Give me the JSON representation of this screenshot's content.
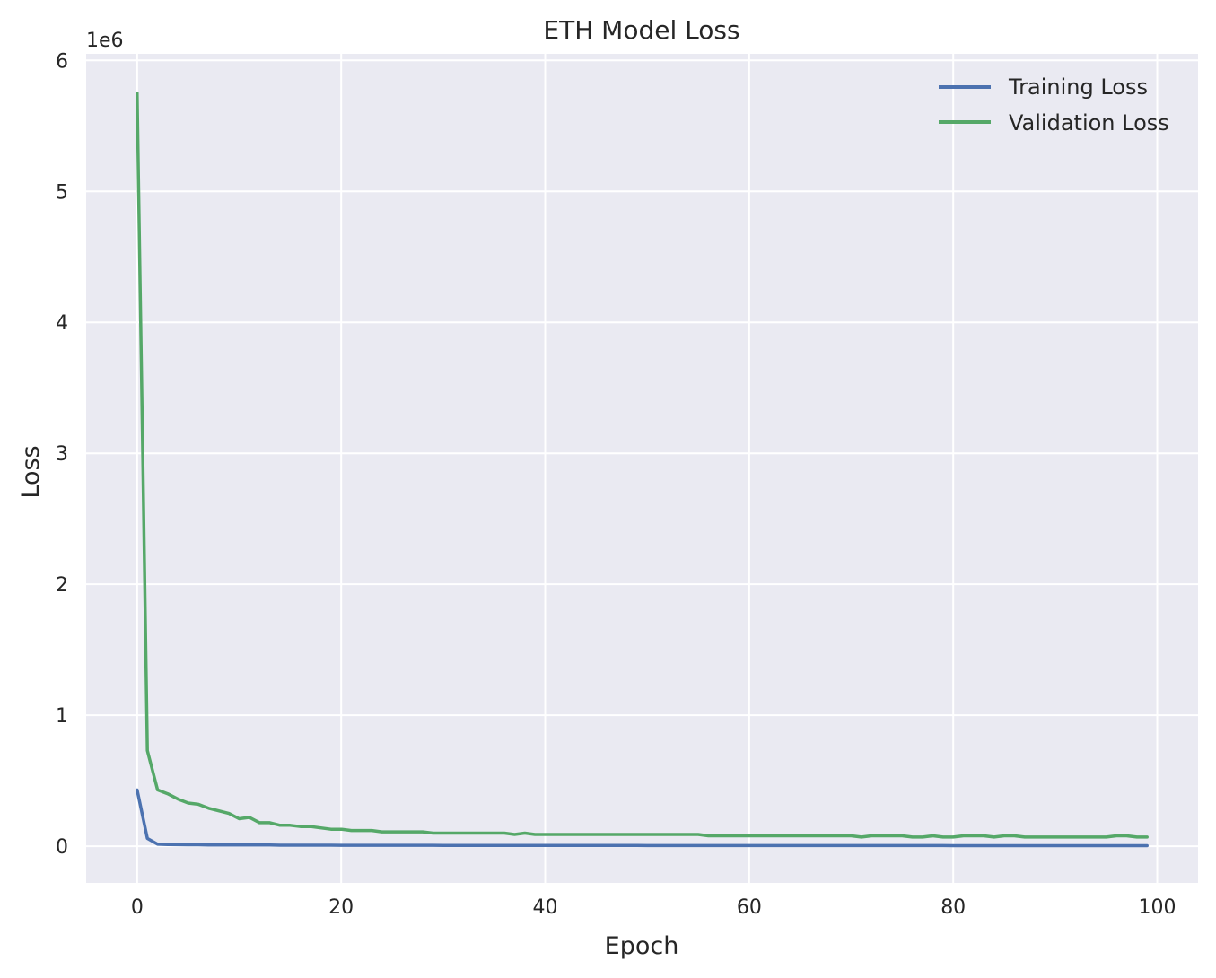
{
  "chart_data": {
    "type": "line",
    "title": "ETH Model Loss",
    "xlabel": "Epoch",
    "ylabel": "Loss",
    "y_scale_label": "1e6",
    "xlim": [
      -5,
      104
    ],
    "ylim": [
      -0.28,
      6.05
    ],
    "x_ticks": [
      0,
      20,
      40,
      60,
      80,
      100
    ],
    "y_ticks": [
      0,
      1,
      2,
      3,
      4,
      5,
      6
    ],
    "grid": true,
    "legend_position": "top-right",
    "background_color": "#eaeaf2",
    "grid_color": "#ffffff",
    "series": [
      {
        "name": "Training Loss",
        "color": "#4c72b0",
        "x_start": 0,
        "values": [
          0.43,
          0.06,
          0.015,
          0.013,
          0.012,
          0.011,
          0.011,
          0.01,
          0.01,
          0.01,
          0.009,
          0.009,
          0.009,
          0.009,
          0.008,
          0.008,
          0.008,
          0.008,
          0.008,
          0.008,
          0.007,
          0.007,
          0.007,
          0.007,
          0.007,
          0.007,
          0.007,
          0.007,
          0.007,
          0.007,
          0.006,
          0.006,
          0.006,
          0.006,
          0.006,
          0.006,
          0.006,
          0.006,
          0.006,
          0.006,
          0.006,
          0.006,
          0.006,
          0.006,
          0.006,
          0.006,
          0.006,
          0.006,
          0.006,
          0.006,
          0.005,
          0.005,
          0.005,
          0.005,
          0.005,
          0.005,
          0.005,
          0.005,
          0.005,
          0.005,
          0.005,
          0.005,
          0.005,
          0.005,
          0.005,
          0.005,
          0.005,
          0.005,
          0.005,
          0.005,
          0.005,
          0.005,
          0.005,
          0.005,
          0.005,
          0.005,
          0.005,
          0.005,
          0.005,
          0.005,
          0.004,
          0.004,
          0.004,
          0.004,
          0.004,
          0.004,
          0.004,
          0.004,
          0.004,
          0.004,
          0.004,
          0.004,
          0.004,
          0.004,
          0.004,
          0.004,
          0.004,
          0.004,
          0.004,
          0.004
        ]
      },
      {
        "name": "Validation Loss",
        "color": "#55a868",
        "x_start": 0,
        "values": [
          5.75,
          0.73,
          0.43,
          0.4,
          0.36,
          0.33,
          0.32,
          0.29,
          0.27,
          0.25,
          0.21,
          0.22,
          0.18,
          0.18,
          0.16,
          0.16,
          0.15,
          0.15,
          0.14,
          0.13,
          0.13,
          0.12,
          0.12,
          0.12,
          0.11,
          0.11,
          0.11,
          0.11,
          0.11,
          0.1,
          0.1,
          0.1,
          0.1,
          0.1,
          0.1,
          0.1,
          0.1,
          0.09,
          0.1,
          0.09,
          0.09,
          0.09,
          0.09,
          0.09,
          0.09,
          0.09,
          0.09,
          0.09,
          0.09,
          0.09,
          0.09,
          0.09,
          0.09,
          0.09,
          0.09,
          0.09,
          0.08,
          0.08,
          0.08,
          0.08,
          0.08,
          0.08,
          0.08,
          0.08,
          0.08,
          0.08,
          0.08,
          0.08,
          0.08,
          0.08,
          0.08,
          0.07,
          0.08,
          0.08,
          0.08,
          0.08,
          0.07,
          0.07,
          0.08,
          0.07,
          0.07,
          0.08,
          0.08,
          0.08,
          0.07,
          0.08,
          0.08,
          0.07,
          0.07,
          0.07,
          0.07,
          0.07,
          0.07,
          0.07,
          0.07,
          0.07,
          0.08,
          0.08,
          0.07,
          0.07
        ]
      }
    ]
  }
}
